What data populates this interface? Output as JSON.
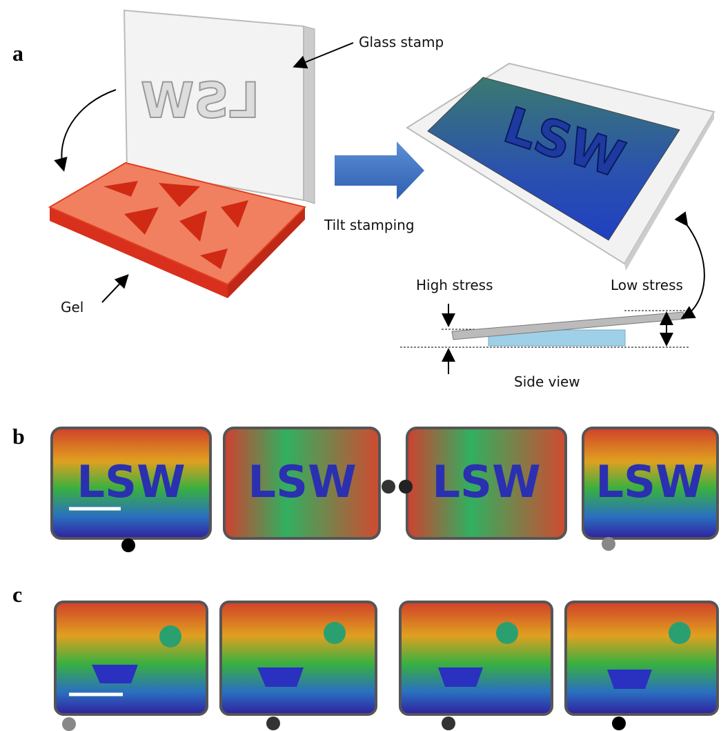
{
  "panels": {
    "a": {
      "label": "a",
      "glass_stamp": "Glass stamp",
      "gel": "Gel",
      "tilt_stamping": "Tilt stamping",
      "stamp_text": "LSW",
      "high_stress": "High stress",
      "low_stress": "Low stress",
      "side_view": "Side view"
    },
    "b": {
      "label": "b"
    },
    "c": {
      "label": "c"
    }
  }
}
